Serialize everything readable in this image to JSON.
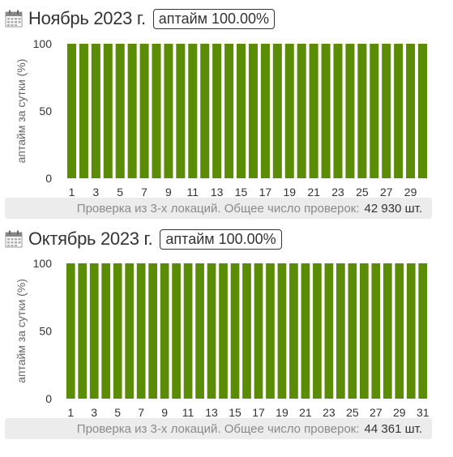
{
  "months": [
    {
      "title": "Ноябрь 2023 г.",
      "uptime_badge": "аптайм 100.00%",
      "footer_note": "Проверка из 3-х локаций. Общее число проверок:",
      "footer_count": "42 930 шт."
    },
    {
      "title": "Октябрь 2023 г.",
      "uptime_badge": "аптайм 100.00%",
      "footer_note": "Проверка из 3-х локаций. Общее число проверок:",
      "footer_count": "44 361 шт."
    }
  ],
  "colors": {
    "bar": "#5b8c06",
    "text": "#333333",
    "muted": "#8a8a8a",
    "footer_bg": "#ececec"
  },
  "icon": "calendar-icon",
  "chart_data": [
    {
      "type": "bar",
      "ylabel": "аптайм за сутки (%)",
      "ylim": [
        0,
        100
      ],
      "yticks": [
        0,
        50,
        100
      ],
      "categories": [
        1,
        2,
        3,
        4,
        5,
        6,
        7,
        8,
        9,
        10,
        11,
        12,
        13,
        14,
        15,
        16,
        17,
        18,
        19,
        20,
        21,
        22,
        23,
        24,
        25,
        26,
        27,
        28,
        29,
        30
      ],
      "xtick_labels": [
        1,
        3,
        5,
        7,
        9,
        11,
        13,
        15,
        17,
        19,
        21,
        23,
        25,
        27,
        29
      ],
      "values": [
        100,
        100,
        100,
        100,
        100,
        100,
        100,
        100,
        100,
        100,
        100,
        100,
        100,
        100,
        100,
        100,
        100,
        100,
        100,
        100,
        100,
        100,
        100,
        100,
        100,
        100,
        100,
        100,
        100,
        100
      ]
    },
    {
      "type": "bar",
      "ylabel": "аптайм за сутки (%)",
      "ylim": [
        0,
        100
      ],
      "yticks": [
        0,
        50,
        100
      ],
      "categories": [
        1,
        2,
        3,
        4,
        5,
        6,
        7,
        8,
        9,
        10,
        11,
        12,
        13,
        14,
        15,
        16,
        17,
        18,
        19,
        20,
        21,
        22,
        23,
        24,
        25,
        26,
        27,
        28,
        29,
        30,
        31
      ],
      "xtick_labels": [
        1,
        3,
        5,
        7,
        9,
        11,
        13,
        15,
        17,
        19,
        21,
        23,
        25,
        27,
        29,
        31
      ],
      "values": [
        100,
        100,
        100,
        100,
        100,
        100,
        100,
        100,
        100,
        100,
        100,
        100,
        100,
        100,
        100,
        100,
        100,
        100,
        100,
        100,
        100,
        100,
        100,
        100,
        100,
        100,
        100,
        100,
        100,
        100,
        100
      ]
    }
  ]
}
